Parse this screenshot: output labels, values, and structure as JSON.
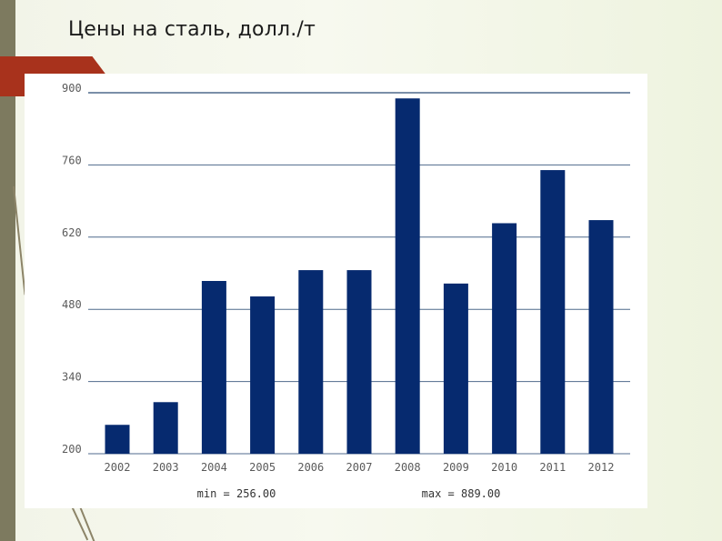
{
  "slide": {
    "title": "Цены на сталь, долл./т"
  },
  "colors": {
    "bar": "#062a6f",
    "grid": "#4f6a8c",
    "accent": "#a8321c"
  },
  "chart_data": {
    "type": "bar",
    "categories": [
      "2002",
      "2003",
      "2004",
      "2005",
      "2006",
      "2007",
      "2008",
      "2009",
      "2010",
      "2011",
      "2012"
    ],
    "values": [
      256,
      300,
      535,
      505,
      556,
      556,
      889,
      530,
      647,
      750,
      653
    ],
    "ylim": [
      200,
      900
    ],
    "yticks": [
      "200",
      "340",
      "480",
      "620",
      "760",
      "900"
    ],
    "grid": true,
    "stats": {
      "min_label": "min = 256.00",
      "max_label": "max = 889.00"
    }
  }
}
